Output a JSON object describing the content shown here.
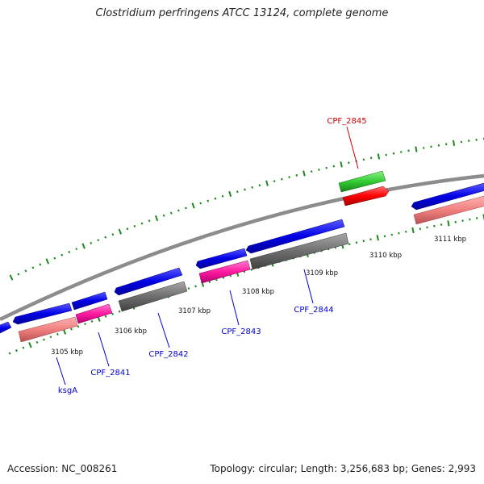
{
  "title": "Clostridium perfringens ATCC 13124, complete genome",
  "footer": {
    "accession": "Accession: NC_008261",
    "summary": "Topology: circular; Length: 3,256,683 bp; Genes: 2,993"
  },
  "colors": {
    "forward_cds": "#0000ee",
    "rRNA_like_salmon": "#f08080",
    "magenta": "#ff1aa0",
    "gray": "#6e6e6e",
    "red": "#ff0000",
    "green": "#33cc33",
    "backbone": "#8c8c8c",
    "ticks": "#1a8a1a",
    "label_blue": "#0000cc",
    "label_red": "#cc0000"
  },
  "scale_labels": [
    "3105 kbp",
    "3106 kbp",
    "3107 kbp",
    "3108 kbp",
    "3109 kbp",
    "3110 kbp",
    "3111 kbp"
  ],
  "gene_labels": [
    {
      "text": "ksgA",
      "color": "blue"
    },
    {
      "text": "CPF_2841",
      "color": "blue"
    },
    {
      "text": "CPF_2842",
      "color": "blue"
    },
    {
      "text": "CPF_2843",
      "color": "blue"
    },
    {
      "text": "CPF_2844",
      "color": "blue"
    },
    {
      "text": "CPF_2845",
      "color": "red"
    }
  ]
}
